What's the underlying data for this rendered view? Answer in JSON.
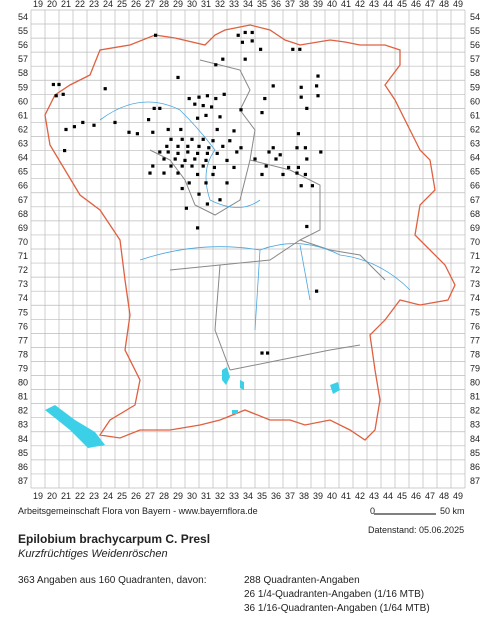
{
  "grid": {
    "columns": [
      19,
      20,
      21,
      22,
      23,
      24,
      25,
      26,
      27,
      28,
      29,
      30,
      31,
      32,
      33,
      34,
      35,
      36,
      37,
      38,
      39,
      40,
      41,
      42,
      43,
      44,
      45,
      46,
      47,
      48,
      49
    ],
    "rows": [
      54,
      55,
      56,
      57,
      58,
      59,
      60,
      61,
      62,
      63,
      64,
      65,
      66,
      67,
      68,
      69,
      70,
      71,
      72,
      73,
      74,
      75,
      76,
      77,
      78,
      79,
      80,
      81,
      82,
      83,
      84,
      85,
      86,
      87
    ]
  },
  "occurrences": [
    [
      27.4,
      55.3
    ],
    [
      33.3,
      55.3
    ],
    [
      33.8,
      55.1
    ],
    [
      34.3,
      55.1
    ],
    [
      34.3,
      55.7
    ],
    [
      33.6,
      55.8
    ],
    [
      34.9,
      56.3
    ],
    [
      37.2,
      56.3
    ],
    [
      37.7,
      56.3
    ],
    [
      32.2,
      57.0
    ],
    [
      33.8,
      57.0
    ],
    [
      31.7,
      57.4
    ],
    [
      39.0,
      58.2
    ],
    [
      29.0,
      58.3
    ],
    [
      20.1,
      58.8
    ],
    [
      20.5,
      58.8
    ],
    [
      35.8,
      58.9
    ],
    [
      37.8,
      59.0
    ],
    [
      38.9,
      58.9
    ],
    [
      23.8,
      59.1
    ],
    [
      20.3,
      59.6
    ],
    [
      20.8,
      59.5
    ],
    [
      29.8,
      59.8
    ],
    [
      30.5,
      59.7
    ],
    [
      31.1,
      59.6
    ],
    [
      31.7,
      59.8
    ],
    [
      32.3,
      59.5
    ],
    [
      35.2,
      59.8
    ],
    [
      37.8,
      59.7
    ],
    [
      39.0,
      59.6
    ],
    [
      30.2,
      60.2
    ],
    [
      30.8,
      60.3
    ],
    [
      31.4,
      60.4
    ],
    [
      27.3,
      60.5
    ],
    [
      27.7,
      60.5
    ],
    [
      33.5,
      60.6
    ],
    [
      35.0,
      60.8
    ],
    [
      38.2,
      60.5
    ],
    [
      31.0,
      61.0
    ],
    [
      32.0,
      61.1
    ],
    [
      30.4,
      61.2
    ],
    [
      26.9,
      61.3
    ],
    [
      24.5,
      61.5
    ],
    [
      22.2,
      61.5
    ],
    [
      23.0,
      61.7
    ],
    [
      21.6,
      61.8
    ],
    [
      21.0,
      62.0
    ],
    [
      28.3,
      62.0
    ],
    [
      29.2,
      62.0
    ],
    [
      31.8,
      62.0
    ],
    [
      33.0,
      62.1
    ],
    [
      27.2,
      62.2
    ],
    [
      25.5,
      62.2
    ],
    [
      26.1,
      62.3
    ],
    [
      37.6,
      62.3
    ],
    [
      28.5,
      62.7
    ],
    [
      29.3,
      62.7
    ],
    [
      30.0,
      62.7
    ],
    [
      30.8,
      62.7
    ],
    [
      31.5,
      62.8
    ],
    [
      32.7,
      62.8
    ],
    [
      28.2,
      63.2
    ],
    [
      29.0,
      63.2
    ],
    [
      29.7,
      63.2
    ],
    [
      30.5,
      63.2
    ],
    [
      31.2,
      63.3
    ],
    [
      32.2,
      63.2
    ],
    [
      33.5,
      63.3
    ],
    [
      35.8,
      63.3
    ],
    [
      37.5,
      63.3
    ],
    [
      38.1,
      63.3
    ],
    [
      20.9,
      63.5
    ],
    [
      27.7,
      63.6
    ],
    [
      28.3,
      63.6
    ],
    [
      29.0,
      63.7
    ],
    [
      29.7,
      63.6
    ],
    [
      30.4,
      63.7
    ],
    [
      31.1,
      63.7
    ],
    [
      31.8,
      63.7
    ],
    [
      33.2,
      63.6
    ],
    [
      35.5,
      63.6
    ],
    [
      36.3,
      63.8
    ],
    [
      39.2,
      63.6
    ],
    [
      28.0,
      64.1
    ],
    [
      28.8,
      64.1
    ],
    [
      29.5,
      64.2
    ],
    [
      30.2,
      64.1
    ],
    [
      31.0,
      64.2
    ],
    [
      32.5,
      64.2
    ],
    [
      34.5,
      64.1
    ],
    [
      36.0,
      64.1
    ],
    [
      38.2,
      64.1
    ],
    [
      27.2,
      64.6
    ],
    [
      28.5,
      64.6
    ],
    [
      29.3,
      64.6
    ],
    [
      30.0,
      64.6
    ],
    [
      30.8,
      64.6
    ],
    [
      31.6,
      64.7
    ],
    [
      33.0,
      64.7
    ],
    [
      35.3,
      64.6
    ],
    [
      36.9,
      64.7
    ],
    [
      37.6,
      64.7
    ],
    [
      27.0,
      65.1
    ],
    [
      28.0,
      65.1
    ],
    [
      29.0,
      65.1
    ],
    [
      30.4,
      65.2
    ],
    [
      31.5,
      65.2
    ],
    [
      35.0,
      65.2
    ],
    [
      36.5,
      65.2
    ],
    [
      37.5,
      65.1
    ],
    [
      38.1,
      65.2
    ],
    [
      29.8,
      65.8
    ],
    [
      31.0,
      65.8
    ],
    [
      32.5,
      65.8
    ],
    [
      37.8,
      66.0
    ],
    [
      38.6,
      66.0
    ],
    [
      29.3,
      66.2
    ],
    [
      30.5,
      66.6
    ],
    [
      32.0,
      67.0
    ],
    [
      31.1,
      67.3
    ],
    [
      29.6,
      67.6
    ],
    [
      30.4,
      69.0
    ],
    [
      38.2,
      68.9
    ],
    [
      38.9,
      73.5
    ],
    [
      35.0,
      77.9
    ],
    [
      35.4,
      77.9
    ]
  ],
  "footer": {
    "credit": "Arbeitsgemeinschaft Flora von Bayern - www.bayernflora.de",
    "scale_start": "0",
    "scale_end": "50 km",
    "date": "Datenstand: 05.06.2025"
  },
  "species": {
    "name": "Epilobium brachycarpum C. Presl",
    "common_name": "Kurzfrüchtiges Weidenröschen"
  },
  "stats": {
    "summary": "363 Angaben aus 160 Quadranten, davon:",
    "lines": [
      "288 Quadranten-Angaben",
      "26 1/4-Quadranten-Angaben (1/16 MTB)",
      "36 1/16-Quadranten-Angaben (1/64 MTB)"
    ]
  }
}
